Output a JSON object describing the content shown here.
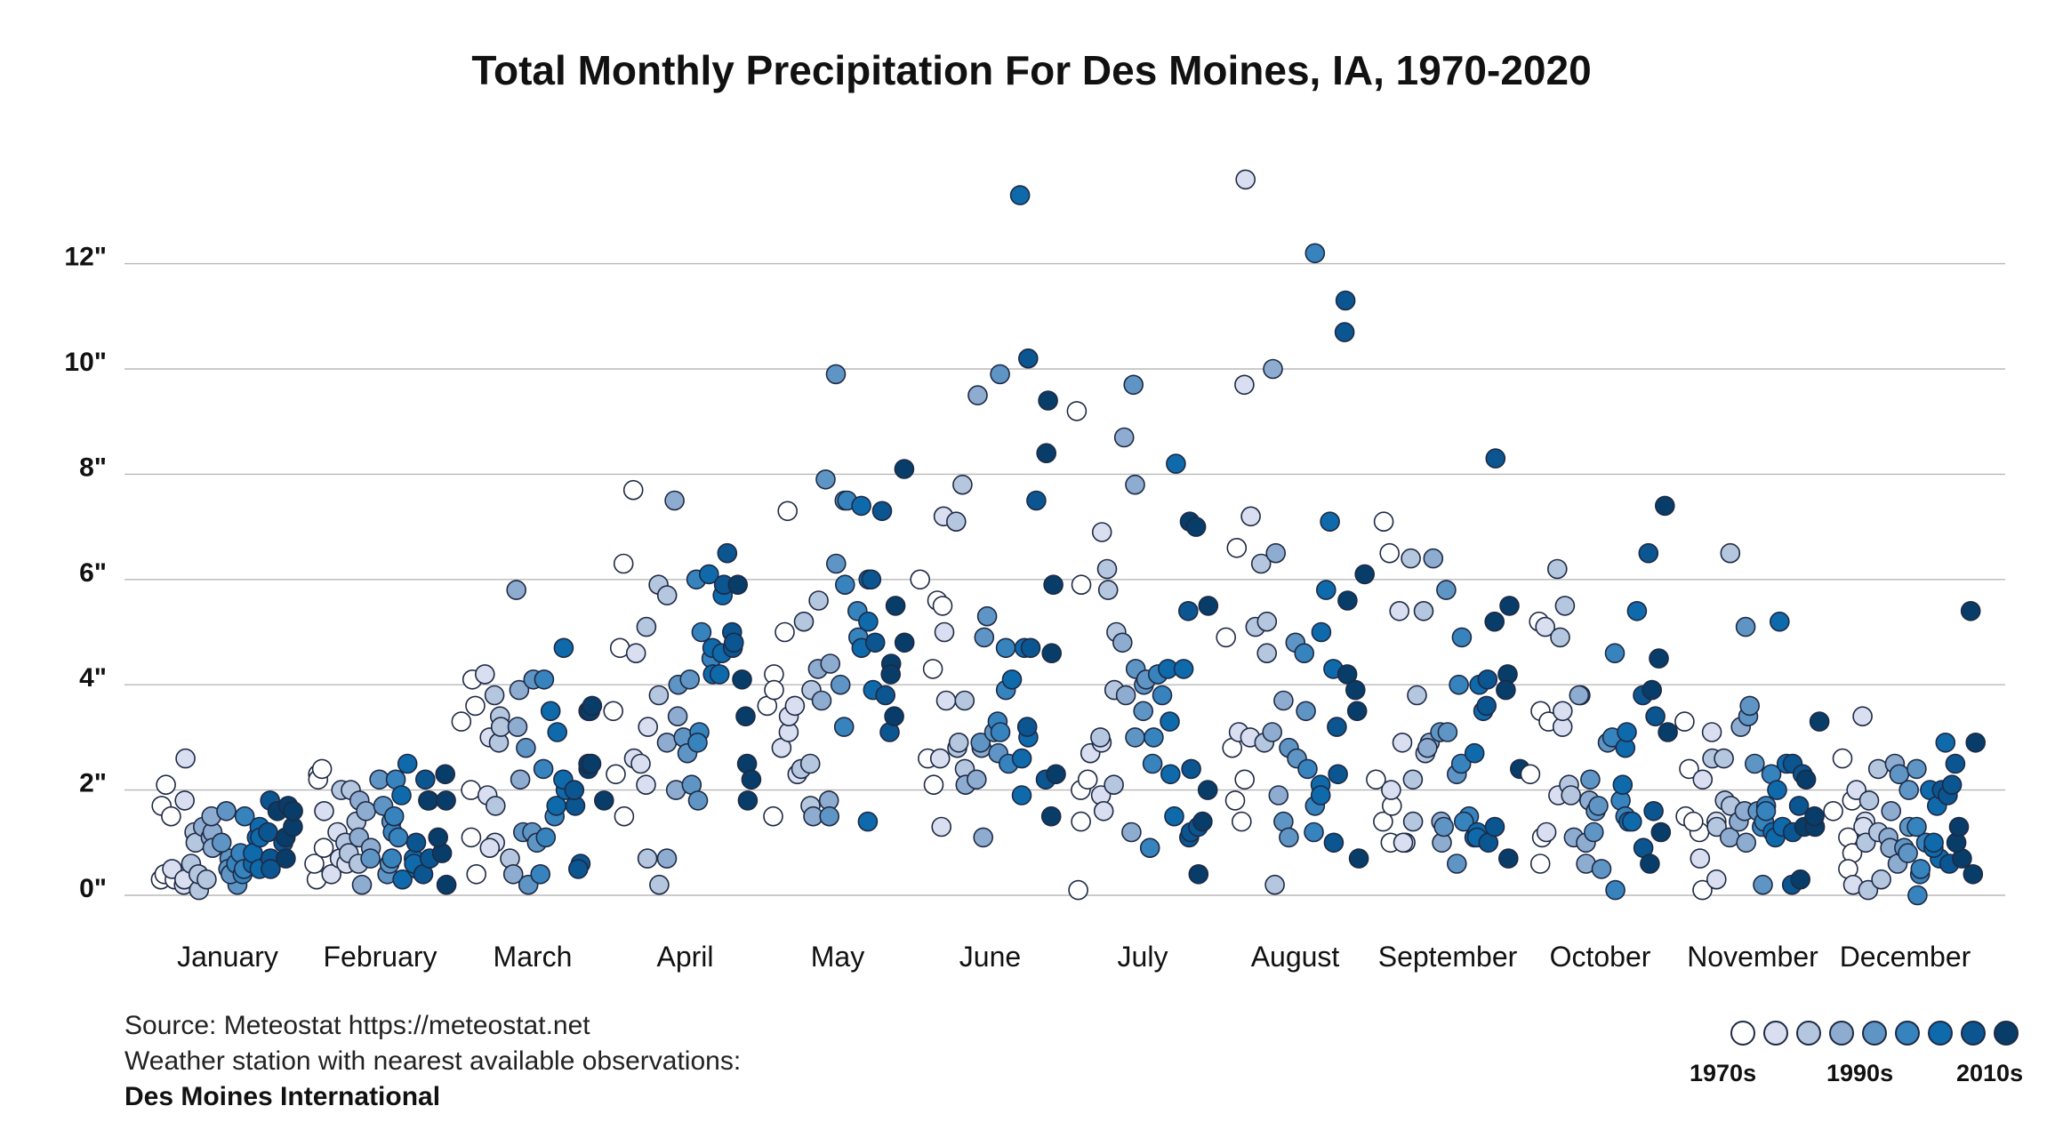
{
  "chart_data": {
    "type": "scatter",
    "title": "Total Monthly Precipitation For Des Moines, IA, 1970-2020",
    "xlabel": "",
    "ylabel": "",
    "categories": [
      "January",
      "February",
      "March",
      "April",
      "May",
      "June",
      "July",
      "August",
      "September",
      "October",
      "November",
      "December"
    ],
    "y_ticks": [
      {
        "value": 0,
        "label": "0\""
      },
      {
        "value": 2,
        "label": "2\""
      },
      {
        "value": 4,
        "label": "4\""
      },
      {
        "value": 6,
        "label": "6\""
      },
      {
        "value": 8,
        "label": "8\""
      },
      {
        "value": 10,
        "label": "10\""
      },
      {
        "value": 12,
        "label": "12\""
      }
    ],
    "ylim": [
      0,
      14
    ],
    "grid": true,
    "decade_colors": [
      "#ffffff",
      "#d9dff0",
      "#b5c6df",
      "#8eacd0",
      "#5f95c4",
      "#3683bd",
      "#0e6aab",
      "#0b5591",
      "#073d68"
    ],
    "legend": {
      "placement": "bottom-right",
      "labels": [
        "1970s",
        "1990s",
        "2010s"
      ]
    },
    "series": [
      {
        "name": "January",
        "values": [
          0.3,
          0.4,
          1.7,
          2.1,
          1.5,
          0.3,
          0.5,
          1.8,
          0.2,
          0.3,
          2.6,
          1.2,
          1.0,
          0.6,
          0.1,
          0.4,
          0.3,
          1.3,
          1.1,
          1.2,
          1.5,
          0.9,
          1.6,
          0.7,
          1.0,
          0.5,
          0.2,
          0.4,
          0.6,
          0.8,
          1.5,
          0.4,
          0.5,
          1.1,
          0.6,
          0.8,
          0.5,
          1.3,
          1.1,
          0.7,
          1.2,
          0.5,
          1.8,
          1.0,
          1.6,
          1.7,
          0.7,
          1.1,
          1.3,
          1.6
        ]
      },
      {
        "name": "February",
        "values": [
          0.3,
          2.3,
          0.6,
          2.2,
          0.9,
          2.4,
          1.6,
          0.4,
          1.2,
          0.7,
          0.6,
          2.0,
          1.0,
          0.8,
          2.0,
          0.6,
          1.4,
          1.1,
          1.8,
          0.2,
          0.9,
          1.6,
          0.7,
          2.2,
          1.7,
          0.4,
          0.6,
          1.4,
          1.2,
          1.5,
          2.2,
          0.7,
          1.1,
          1.9,
          0.3,
          2.5,
          0.7,
          0.5,
          0.6,
          2.2,
          1.0,
          0.4,
          1.8,
          0.7,
          1.8,
          0.8,
          1.1,
          1.8,
          2.3,
          0.2
        ]
      },
      {
        "name": "March",
        "values": [
          3.3,
          4.1,
          0.4,
          1.1,
          2.0,
          3.6,
          4.2,
          1.9,
          3.0,
          1.0,
          0.9,
          3.4,
          3.8,
          1.7,
          2.9,
          3.2,
          0.7,
          5.8,
          3.9,
          0.4,
          2.2,
          3.2,
          1.2,
          0.2,
          2.8,
          1.2,
          4.1,
          1.0,
          1.1,
          0.4,
          2.4,
          4.1,
          1.5,
          3.5,
          3.1,
          1.7,
          4.7,
          2.0,
          2.2,
          1.7,
          2.0,
          0.6,
          0.5,
          3.5,
          2.4,
          3.5,
          2.5,
          3.6,
          2.5,
          1.8
        ]
      },
      {
        "name": "April",
        "values": [
          3.5,
          2.3,
          4.7,
          1.5,
          6.3,
          7.7,
          2.6,
          4.6,
          2.5,
          3.2,
          2.1,
          0.7,
          5.1,
          3.8,
          5.9,
          0.2,
          5.7,
          2.9,
          0.7,
          2.0,
          3.4,
          7.5,
          4.0,
          3.0,
          2.7,
          2.1,
          4.1,
          1.8,
          6.0,
          5.0,
          3.1,
          2.9,
          4.5,
          6.1,
          4.2,
          4.7,
          4.2,
          5.7,
          4.6,
          5.9,
          5.0,
          4.7,
          6.5,
          4.8,
          5.9,
          2.5,
          3.4,
          4.1,
          2.2,
          1.8
        ]
      },
      {
        "name": "May",
        "values": [
          3.6,
          4.2,
          3.9,
          1.5,
          7.3,
          5.0,
          2.8,
          3.1,
          3.4,
          2.3,
          3.6,
          5.2,
          2.4,
          3.9,
          2.5,
          1.7,
          5.6,
          1.5,
          4.3,
          3.7,
          4.4,
          1.8,
          7.9,
          1.5,
          6.3,
          9.9,
          4.0,
          7.5,
          5.9,
          3.2,
          7.5,
          4.9,
          5.4,
          4.7,
          6.0,
          7.4,
          1.4,
          5.2,
          3.9,
          6.0,
          4.8,
          3.8,
          3.1,
          7.3,
          4.4,
          4.2,
          3.4,
          5.5,
          4.8,
          8.1
        ]
      },
      {
        "name": "June",
        "values": [
          6.0,
          2.6,
          2.1,
          5.6,
          4.3,
          5.5,
          7.2,
          1.3,
          2.6,
          5.0,
          3.7,
          7.1,
          2.8,
          3.7,
          2.9,
          7.8,
          2.4,
          2.1,
          9.5,
          2.2,
          2.8,
          1.1,
          2.9,
          5.3,
          4.9,
          3.1,
          9.9,
          2.7,
          3.3,
          3.1,
          4.7,
          2.5,
          3.9,
          4.1,
          13.3,
          1.9,
          2.6,
          4.7,
          3.0,
          10.2,
          3.2,
          4.7,
          7.5,
          2.2,
          8.4,
          1.5,
          9.4,
          2.3,
          5.9,
          4.6
        ]
      },
      {
        "name": "July",
        "values": [
          2.0,
          9.2,
          0.1,
          1.4,
          5.9,
          2.2,
          2.7,
          1.9,
          2.9,
          6.9,
          1.6,
          3.0,
          5.8,
          6.2,
          2.1,
          3.9,
          5.0,
          4.8,
          3.8,
          8.7,
          1.2,
          7.8,
          4.3,
          9.7,
          3.0,
          4.0,
          4.1,
          3.5,
          3.0,
          0.9,
          2.5,
          4.2,
          3.8,
          4.3,
          1.5,
          8.2,
          3.3,
          2.3,
          4.3,
          5.4,
          1.1,
          1.2,
          2.4,
          1.3,
          7.1,
          7.0,
          1.4,
          0.4,
          5.5,
          2.0
        ]
      },
      {
        "name": "August",
        "values": [
          4.9,
          6.6,
          1.8,
          2.8,
          1.4,
          2.2,
          3.1,
          9.7,
          13.6,
          7.2,
          3.0,
          5.1,
          6.3,
          2.9,
          5.2,
          0.2,
          4.6,
          10.0,
          3.1,
          6.5,
          1.9,
          3.7,
          1.4,
          2.8,
          1.1,
          4.8,
          2.6,
          3.5,
          4.6,
          2.4,
          1.7,
          12.2,
          1.2,
          5.0,
          2.1,
          1.9,
          7.1,
          5.8,
          4.3,
          1.0,
          3.2,
          10.7,
          2.3,
          11.3,
          4.2,
          5.6,
          3.5,
          0.7,
          3.9,
          6.1
        ]
      },
      {
        "name": "September",
        "values": [
          2.2,
          1.4,
          6.5,
          7.1,
          1.0,
          1.7,
          2.0,
          5.4,
          1.0,
          1.0,
          2.9,
          6.4,
          2.2,
          3.8,
          1.4,
          2.7,
          5.4,
          2.9,
          6.4,
          2.8,
          1.4,
          1.0,
          5.8,
          3.1,
          1.3,
          3.1,
          0.6,
          2.3,
          4.9,
          4.0,
          2.5,
          1.5,
          1.4,
          2.7,
          1.1,
          1.2,
          1.1,
          3.5,
          4.0,
          3.6,
          1.0,
          4.1,
          8.3,
          1.3,
          5.2,
          5.5,
          4.2,
          3.9,
          0.7,
          2.4
        ]
      },
      {
        "name": "October",
        "values": [
          2.3,
          5.2,
          3.5,
          0.6,
          3.3,
          1.1,
          5.1,
          1.2,
          1.9,
          3.2,
          3.5,
          6.2,
          4.9,
          5.5,
          2.1,
          3.8,
          1.9,
          1.1,
          3.8,
          0.6,
          1.8,
          1.0,
          2.2,
          1.6,
          1.2,
          0.5,
          1.7,
          2.9,
          3.0,
          4.6,
          1.8,
          0.1,
          1.5,
          2.8,
          1.4,
          2.1,
          3.1,
          1.4,
          5.4,
          3.8,
          0.9,
          6.5,
          1.6,
          3.4,
          0.6,
          3.9,
          1.2,
          4.5,
          3.1,
          7.4
        ]
      },
      {
        "name": "November",
        "values": [
          3.3,
          1.5,
          2.4,
          1.2,
          0.1,
          1.4,
          0.7,
          2.2,
          3.1,
          1.4,
          0.3,
          2.6,
          1.3,
          2.6,
          1.8,
          1.7,
          6.5,
          1.1,
          1.4,
          3.2,
          1.6,
          1.0,
          3.4,
          3.6,
          5.1,
          1.6,
          0.2,
          2.5,
          1.3,
          1.4,
          1.7,
          1.6,
          2.3,
          1.2,
          1.1,
          2.0,
          5.2,
          1.3,
          2.5,
          0.2,
          1.2,
          2.5,
          2.3,
          1.7,
          0.3,
          1.3,
          2.2,
          1.3,
          1.5,
          3.3
        ]
      },
      {
        "name": "December",
        "values": [
          1.6,
          2.6,
          1.1,
          0.8,
          0.5,
          1.8,
          2.0,
          0.2,
          1.4,
          1.3,
          3.4,
          0.1,
          1.0,
          1.8,
          1.2,
          0.3,
          2.4,
          1.1,
          0.9,
          2.5,
          1.6,
          0.6,
          2.3,
          0.9,
          2.0,
          1.3,
          0.8,
          2.4,
          0.0,
          0.4,
          1.0,
          1.3,
          0.5,
          2.0,
          1.7,
          0.7,
          0.9,
          1.0,
          2.9,
          2.0,
          0.6,
          2.5,
          1.9,
          2.1,
          0.7,
          1.0,
          1.3,
          5.4,
          0.4,
          2.9
        ]
      }
    ]
  },
  "footer": {
    "source_line1": "Source: Meteostat https://meteostat.net",
    "source_line2": "Weather station with nearest available observations:",
    "station": "Des Moines International"
  }
}
